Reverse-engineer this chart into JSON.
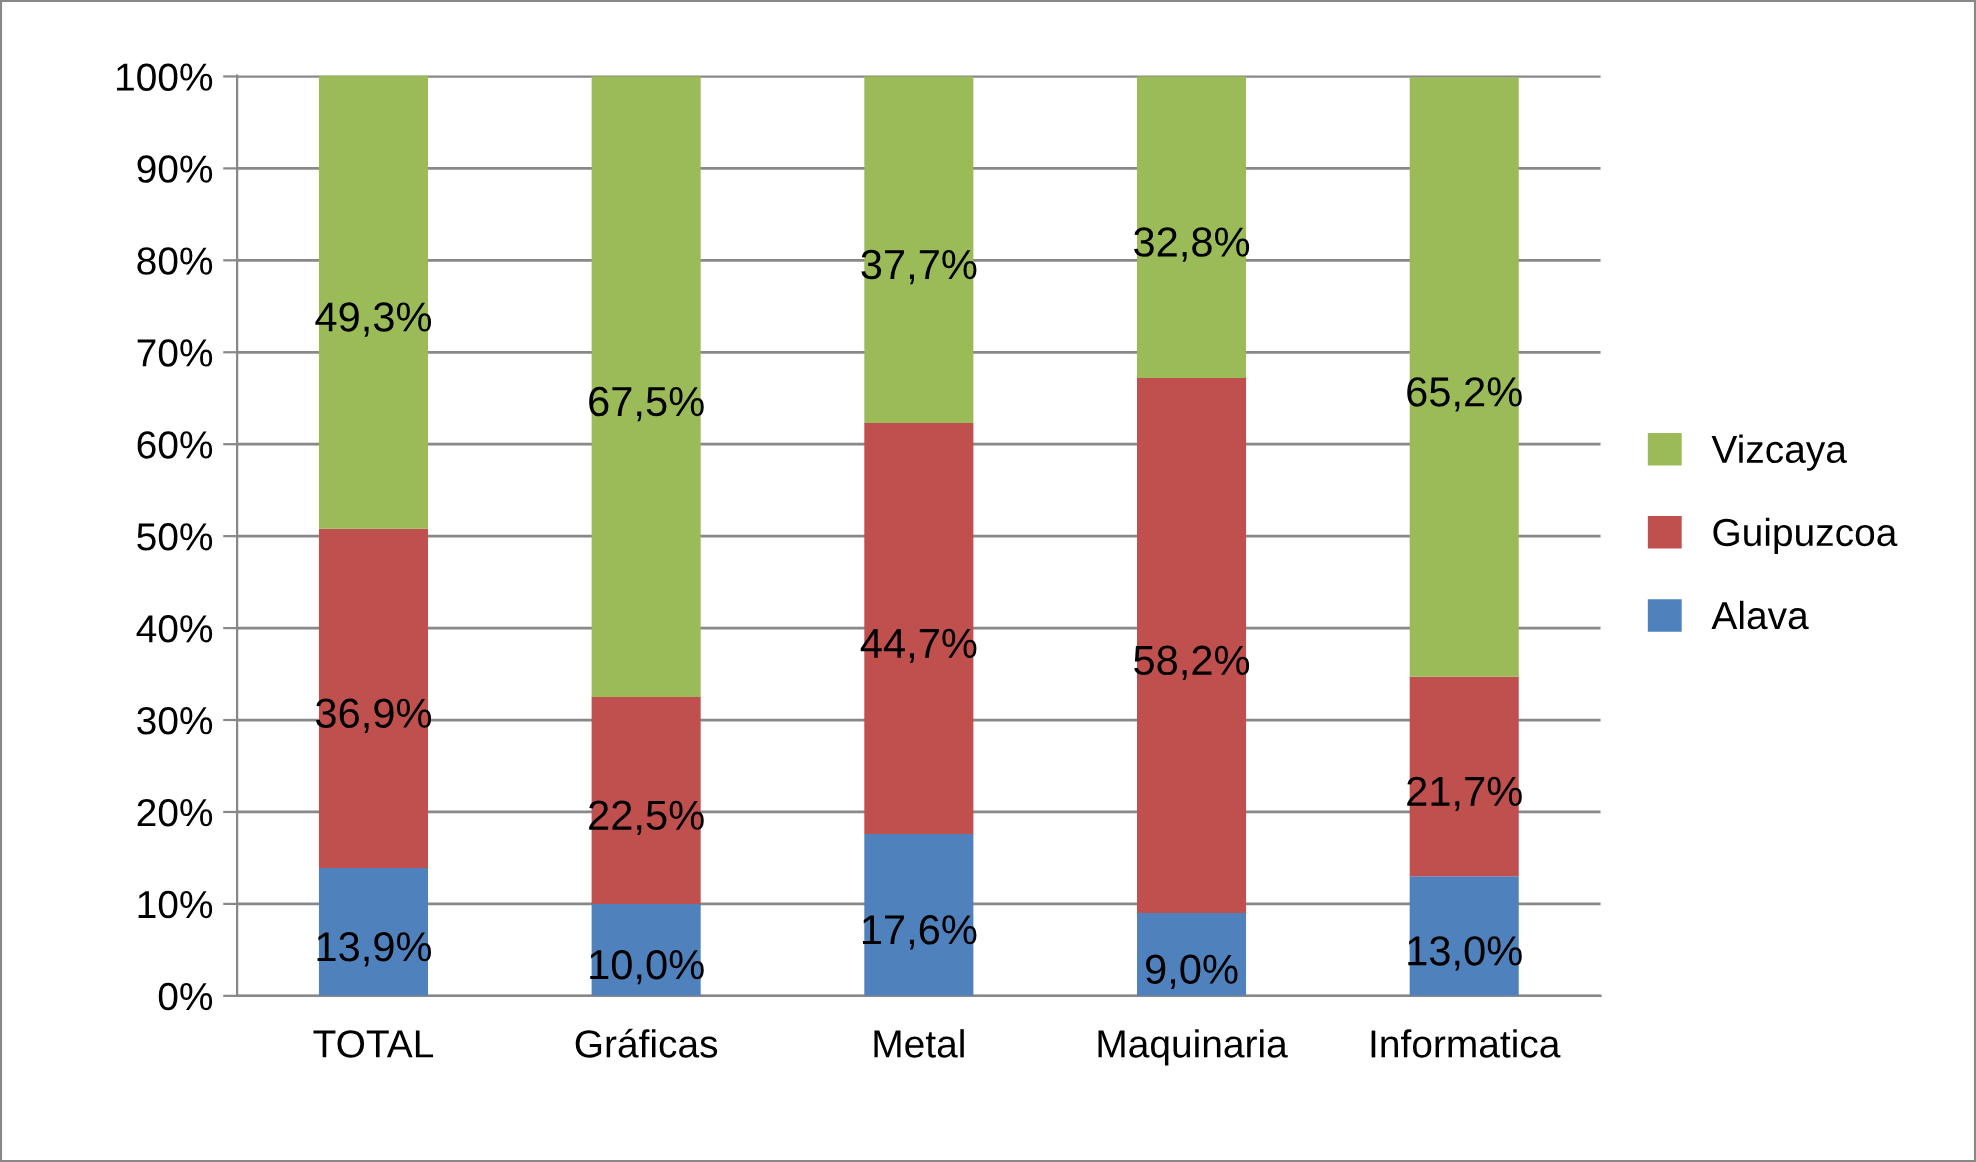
{
  "chart_data": {
    "type": "bar",
    "stacked": true,
    "categories": [
      "TOTAL",
      "Gráficas",
      "Metal",
      "Maquinaria",
      "Informatica"
    ],
    "series": [
      {
        "name": "Alava",
        "color": "#4f81bd",
        "values": [
          13.9,
          10.0,
          17.6,
          9.0,
          13.0
        ],
        "value_labels": [
          "13,9%",
          "10,0%",
          "17,6%",
          "9,0%",
          "13,0%"
        ]
      },
      {
        "name": "Guipuzcoa",
        "color": "#c0504d",
        "values": [
          36.9,
          22.5,
          44.7,
          58.2,
          21.7
        ],
        "value_labels": [
          "36,9%",
          "22,5%",
          "44,7%",
          "58,2%",
          "21,7%"
        ]
      },
      {
        "name": "Vizcaya",
        "color": "#9bbb59",
        "values": [
          49.3,
          67.5,
          37.7,
          32.8,
          65.2
        ],
        "value_labels": [
          "49,3%",
          "67,5%",
          "37,7%",
          "32,8%",
          "65,2%"
        ]
      }
    ],
    "ylim": [
      0,
      100.1
    ],
    "yticks": [
      {
        "value": 0,
        "label": "0%"
      },
      {
        "value": 10,
        "label": "10%"
      },
      {
        "value": 20,
        "label": "20%"
      },
      {
        "value": 30,
        "label": "30%"
      },
      {
        "value": 40,
        "label": "40%"
      },
      {
        "value": 50,
        "label": "50%"
      },
      {
        "value": 60,
        "label": "60%"
      },
      {
        "value": 70,
        "label": "70%"
      },
      {
        "value": 80,
        "label": "80%"
      },
      {
        "value": 90,
        "label": "90%"
      },
      {
        "value": 100,
        "label": "100%"
      }
    ],
    "grid": "y",
    "legend": "right"
  }
}
